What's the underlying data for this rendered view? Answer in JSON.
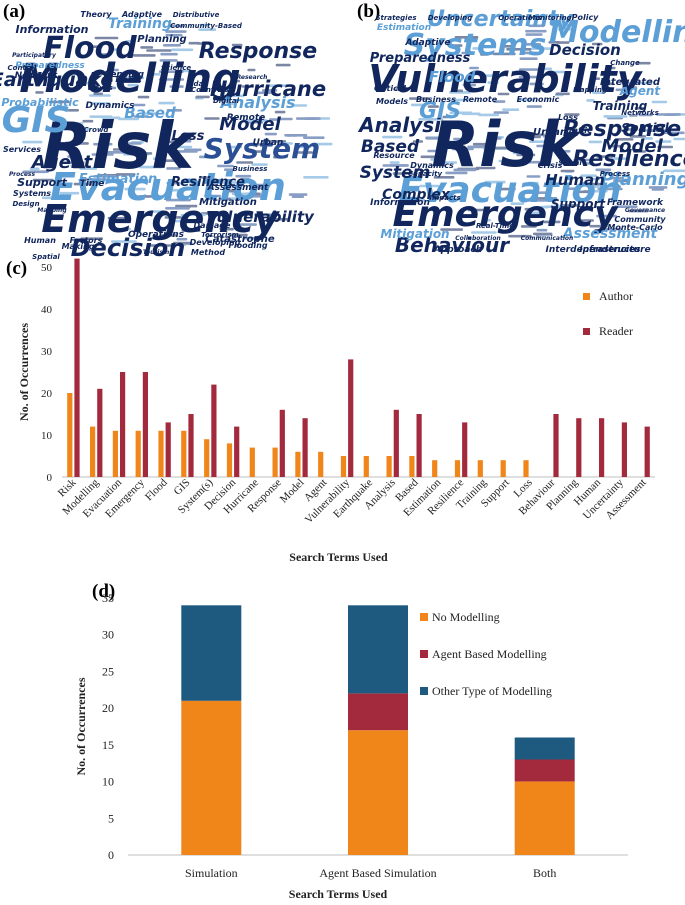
{
  "panels": {
    "a": "(a)",
    "b": "(b)",
    "c": "(c)",
    "d": "(d)"
  },
  "colors": {
    "author": "#f0861a",
    "reader": "#a3293d",
    "no_modelling": "#f0861a",
    "agent_based": "#a3293d",
    "other_modelling": "#1e5a80",
    "cloud_dark": "#10265c",
    "cloud_mid": "#2a4f94",
    "cloud_light": "#5b9fd6"
  },
  "wordcloud_a": {
    "words": [
      {
        "t": "Risk",
        "c": "cloud_dark",
        "s": 64
      },
      {
        "t": "Modelling",
        "c": "cloud_dark",
        "s": 40
      },
      {
        "t": "Evacuation",
        "c": "cloud_light",
        "s": 38
      },
      {
        "t": "Emergency",
        "c": "cloud_dark",
        "s": 38
      },
      {
        "t": "Flood",
        "c": "cloud_dark",
        "s": 30
      },
      {
        "t": "GIS",
        "c": "cloud_light",
        "s": 36
      },
      {
        "t": "System",
        "c": "cloud_mid",
        "s": 28
      },
      {
        "t": "Decision",
        "c": "cloud_dark",
        "s": 24
      },
      {
        "t": "Response",
        "c": "cloud_dark",
        "s": 22
      },
      {
        "t": "Hurricane",
        "c": "cloud_dark",
        "s": 21
      },
      {
        "t": "Earthquake",
        "c": "cloud_dark",
        "s": 19
      },
      {
        "t": "Agent",
        "c": "cloud_dark",
        "s": 18
      },
      {
        "t": "Model",
        "c": "cloud_dark",
        "s": 18
      },
      {
        "t": "Analysis",
        "c": "cloud_light",
        "s": 16
      },
      {
        "t": "Vulnerability",
        "c": "cloud_dark",
        "s": 15
      },
      {
        "t": "Resilience",
        "c": "cloud_dark",
        "s": 13
      },
      {
        "t": "Estimation",
        "c": "cloud_light",
        "s": 13
      },
      {
        "t": "Based",
        "c": "cloud_light",
        "s": 15
      },
      {
        "t": "Training",
        "c": "cloud_light",
        "s": 14
      },
      {
        "t": "Loss",
        "c": "cloud_dark",
        "s": 13
      },
      {
        "t": "Support",
        "c": "cloud_dark",
        "s": 11
      },
      {
        "t": "Information",
        "c": "cloud_dark",
        "s": 11
      },
      {
        "t": "Probabilistic",
        "c": "cloud_light",
        "s": 11
      },
      {
        "t": "Catastrophe",
        "c": "cloud_dark",
        "s": 10
      },
      {
        "t": "Mitigation",
        "c": "cloud_dark",
        "s": 10
      },
      {
        "t": "Preparedness",
        "c": "cloud_light",
        "s": 9
      },
      {
        "t": "Assessment",
        "c": "cloud_dark",
        "s": 9
      },
      {
        "t": "Planning",
        "c": "cloud_dark",
        "s": 10
      },
      {
        "t": "Dynamics",
        "c": "cloud_dark",
        "s": 9
      },
      {
        "t": "Network",
        "c": "cloud_dark",
        "s": 9
      },
      {
        "t": "Operations",
        "c": "cloud_dark",
        "s": 9
      },
      {
        "t": "Time",
        "c": "cloud_dark",
        "s": 9
      },
      {
        "t": "Urban",
        "c": "cloud_dark",
        "s": 9
      },
      {
        "t": "Remote",
        "c": "cloud_dark",
        "s": 9
      },
      {
        "t": "Sensing",
        "c": "cloud_dark",
        "s": 9
      },
      {
        "t": "Traffic",
        "c": "cloud_dark",
        "s": 8
      },
      {
        "t": "Services",
        "c": "cloud_dark",
        "s": 8
      },
      {
        "t": "Systems",
        "c": "cloud_dark",
        "s": 8
      },
      {
        "t": "Making",
        "c": "cloud_dark",
        "s": 8
      },
      {
        "t": "Developing",
        "c": "cloud_dark",
        "s": 8
      },
      {
        "t": "Method",
        "c": "cloud_dark",
        "s": 8
      },
      {
        "t": "Flooding",
        "c": "cloud_dark",
        "s": 8
      },
      {
        "t": "Damage",
        "c": "cloud_dark",
        "s": 8
      },
      {
        "t": "Human",
        "c": "cloud_dark",
        "s": 8
      },
      {
        "t": "Factors",
        "c": "cloud_dark",
        "s": 8
      },
      {
        "t": "Spatial",
        "c": "cloud_dark",
        "s": 7
      },
      {
        "t": "Countries",
        "c": "cloud_dark",
        "s": 7
      },
      {
        "t": "Science",
        "c": "cloud_dark",
        "s": 7
      },
      {
        "t": "Digital",
        "c": "cloud_dark",
        "s": 7
      },
      {
        "t": "Business",
        "c": "cloud_dark",
        "s": 7
      },
      {
        "t": "Crowd",
        "c": "cloud_dark",
        "s": 7
      },
      {
        "t": "Control",
        "c": "cloud_dark",
        "s": 7
      },
      {
        "t": "Design",
        "c": "cloud_dark",
        "s": 7
      },
      {
        "t": "Theory",
        "c": "cloud_dark",
        "s": 8
      },
      {
        "t": "Adaptive",
        "c": "cloud_dark",
        "s": 8
      },
      {
        "t": "Distributive",
        "c": "cloud_dark",
        "s": 7
      },
      {
        "t": "Community-Based",
        "c": "cloud_dark",
        "s": 7
      },
      {
        "t": "Terrorism",
        "c": "cloud_dark",
        "s": 7
      },
      {
        "t": "Tidal",
        "c": "cloud_dark",
        "s": 7
      },
      {
        "t": "Waves",
        "c": "cloud_dark",
        "s": 7
      },
      {
        "t": "Participatory",
        "c": "cloud_dark",
        "s": 6
      },
      {
        "t": "Research",
        "c": "cloud_dark",
        "s": 6
      },
      {
        "t": "Process",
        "c": "cloud_dark",
        "s": 6
      },
      {
        "t": "Tourism",
        "c": "cloud_dark",
        "s": 6
      },
      {
        "t": "Mapping",
        "c": "cloud_dark",
        "s": 6
      }
    ]
  },
  "wordcloud_b": {
    "words": [
      {
        "t": "Risk",
        "c": "cloud_dark",
        "s": 62
      },
      {
        "t": "Vulnerability",
        "c": "cloud_dark",
        "s": 38
      },
      {
        "t": "Evacuation",
        "c": "cloud_light",
        "s": 36
      },
      {
        "t": "Emergency",
        "c": "cloud_dark",
        "s": 36
      },
      {
        "t": "Systems",
        "c": "cloud_light",
        "s": 30
      },
      {
        "t": "Modelling",
        "c": "cloud_light",
        "s": 30
      },
      {
        "t": "Uncertainty",
        "c": "cloud_light",
        "s": 22
      },
      {
        "t": "Response",
        "c": "cloud_dark",
        "s": 22
      },
      {
        "t": "Resilience",
        "c": "cloud_dark",
        "s": 22
      },
      {
        "t": "Behaviour",
        "c": "cloud_dark",
        "s": 20
      },
      {
        "t": "Analysis",
        "c": "cloud_dark",
        "s": 20
      },
      {
        "t": "GIS",
        "c": "cloud_light",
        "s": 22
      },
      {
        "t": "Planning",
        "c": "cloud_light",
        "s": 18
      },
      {
        "t": "Model",
        "c": "cloud_dark",
        "s": 18
      },
      {
        "t": "Based",
        "c": "cloud_dark",
        "s": 17
      },
      {
        "t": "System",
        "c": "cloud_dark",
        "s": 17
      },
      {
        "t": "Human",
        "c": "cloud_dark",
        "s": 15
      },
      {
        "t": "Decision",
        "c": "cloud_dark",
        "s": 15
      },
      {
        "t": "Assessment",
        "c": "cloud_light",
        "s": 14
      },
      {
        "t": "Flood",
        "c": "cloud_light",
        "s": 15
      },
      {
        "t": "Complex",
        "c": "cloud_dark",
        "s": 14
      },
      {
        "t": "Preparedness",
        "c": "cloud_dark",
        "s": 13
      },
      {
        "t": "Mitigation",
        "c": "cloud_light",
        "s": 12
      },
      {
        "t": "Training",
        "c": "cloud_dark",
        "s": 12
      },
      {
        "t": "Support",
        "c": "cloud_dark",
        "s": 12
      },
      {
        "t": "Agent",
        "c": "cloud_light",
        "s": 12
      },
      {
        "t": "Spatial",
        "c": "cloud_dark",
        "s": 12
      },
      {
        "t": "Integrated",
        "c": "cloud_dark",
        "s": 10
      },
      {
        "t": "Framework",
        "c": "cloud_dark",
        "s": 9
      },
      {
        "t": "Urban",
        "c": "cloud_dark",
        "s": 10
      },
      {
        "t": "Approach",
        "c": "cloud_dark",
        "s": 9
      },
      {
        "t": "Infrastructure",
        "c": "cloud_dark",
        "s": 9
      },
      {
        "t": "Interdependencies",
        "c": "cloud_dark",
        "s": 9
      },
      {
        "t": "Adaptive",
        "c": "cloud_dark",
        "s": 9
      },
      {
        "t": "Information",
        "c": "cloud_dark",
        "s": 9
      },
      {
        "t": "Resource",
        "c": "cloud_dark",
        "s": 8
      },
      {
        "t": "Dynamics",
        "c": "cloud_dark",
        "s": 8
      },
      {
        "t": "Estimation",
        "c": "cloud_light",
        "s": 9
      },
      {
        "t": "Business",
        "c": "cloud_dark",
        "s": 8
      },
      {
        "t": "Economic",
        "c": "cloud_dark",
        "s": 8
      },
      {
        "t": "Remote",
        "c": "cloud_dark",
        "s": 8
      },
      {
        "t": "Models",
        "c": "cloud_dark",
        "s": 8
      },
      {
        "t": "Critical",
        "c": "cloud_dark",
        "s": 8
      },
      {
        "t": "Community",
        "c": "cloud_dark",
        "s": 8
      },
      {
        "t": "Monte-Carlo",
        "c": "cloud_dark",
        "s": 8
      },
      {
        "t": "Policy",
        "c": "cloud_dark",
        "s": 8
      },
      {
        "t": "Loss",
        "c": "cloud_dark",
        "s": 8
      },
      {
        "t": "Traffic",
        "c": "cloud_dark",
        "s": 8
      },
      {
        "t": "Crisis",
        "c": "cloud_dark",
        "s": 8
      },
      {
        "t": "Mapping",
        "c": "cloud_dark",
        "s": 7
      },
      {
        "t": "Real-Time",
        "c": "cloud_dark",
        "s": 7
      },
      {
        "t": "Strategies",
        "c": "cloud_dark",
        "s": 7
      },
      {
        "t": "Developing",
        "c": "cloud_dark",
        "s": 7
      },
      {
        "t": "Monitoring",
        "c": "cloud_dark",
        "s": 7
      },
      {
        "t": "Operations",
        "c": "cloud_dark",
        "s": 7
      },
      {
        "t": "Change",
        "c": "cloud_dark",
        "s": 7
      },
      {
        "t": "Process",
        "c": "cloud_dark",
        "s": 7
      },
      {
        "t": "Social",
        "c": "cloud_dark",
        "s": 7
      },
      {
        "t": "Networks",
        "c": "cloud_dark",
        "s": 7
      },
      {
        "t": "Capacity",
        "c": "cloud_dark",
        "s": 7
      },
      {
        "t": "Impacts",
        "c": "cloud_dark",
        "s": 7
      },
      {
        "t": "Collaboration",
        "c": "cloud_dark",
        "s": 6
      },
      {
        "t": "Communication",
        "c": "cloud_dark",
        "s": 6
      },
      {
        "t": "Governance",
        "c": "cloud_dark",
        "s": 6
      }
    ]
  },
  "chart_data": [
    {
      "type": "bar",
      "panel": "(c)",
      "title": "",
      "xlabel": "Search Terms Used",
      "ylabel": "No. of Occurrences",
      "ylim": [
        0,
        50
      ],
      "yticks": [
        0,
        10,
        20,
        30,
        40,
        50
      ],
      "legend_position": "top-right",
      "categories": [
        "Risk",
        "Modelling",
        "Evacuation",
        "Emergency",
        "Flood",
        "GIS",
        "System(s)",
        "Decision",
        "Hurricane",
        "Response",
        "Model",
        "Agent",
        "Vulnerability",
        "Earthquake",
        "Analysis",
        "Based",
        "Estimation",
        "Resilience",
        "Training",
        "Support",
        "Loss",
        "Behaviour",
        "Planning",
        "Human",
        "Uncertainty",
        "Assessment"
      ],
      "series": [
        {
          "name": "Author",
          "values": [
            20,
            12,
            11,
            11,
            11,
            11,
            9,
            8,
            7,
            7,
            6,
            6,
            5,
            5,
            5,
            5,
            4,
            4,
            4,
            4,
            4,
            0,
            0,
            0,
            0,
            0
          ]
        },
        {
          "name": "Reader",
          "values": [
            52,
            21,
            25,
            25,
            13,
            15,
            22,
            12,
            0,
            16,
            14,
            0,
            28,
            0,
            16,
            15,
            0,
            13,
            0,
            0,
            0,
            15,
            14,
            14,
            13,
            12
          ]
        }
      ]
    },
    {
      "type": "bar",
      "stacked": true,
      "panel": "(d)",
      "title": "",
      "xlabel": "Search Terms Used",
      "ylabel": "No. of Occurrences",
      "ylim": [
        0,
        35
      ],
      "yticks": [
        0,
        5,
        10,
        15,
        20,
        25,
        30,
        35
      ],
      "legend_position": "top-right",
      "categories": [
        "Simulation",
        "Agent Based Simulation",
        "Both"
      ],
      "series": [
        {
          "name": "No Modelling",
          "values": [
            21,
            17,
            10
          ]
        },
        {
          "name": "Agent Based Modelling",
          "values": [
            0,
            5,
            3
          ]
        },
        {
          "name": "Other Type of Modelling",
          "values": [
            13,
            12,
            3
          ]
        }
      ]
    }
  ]
}
